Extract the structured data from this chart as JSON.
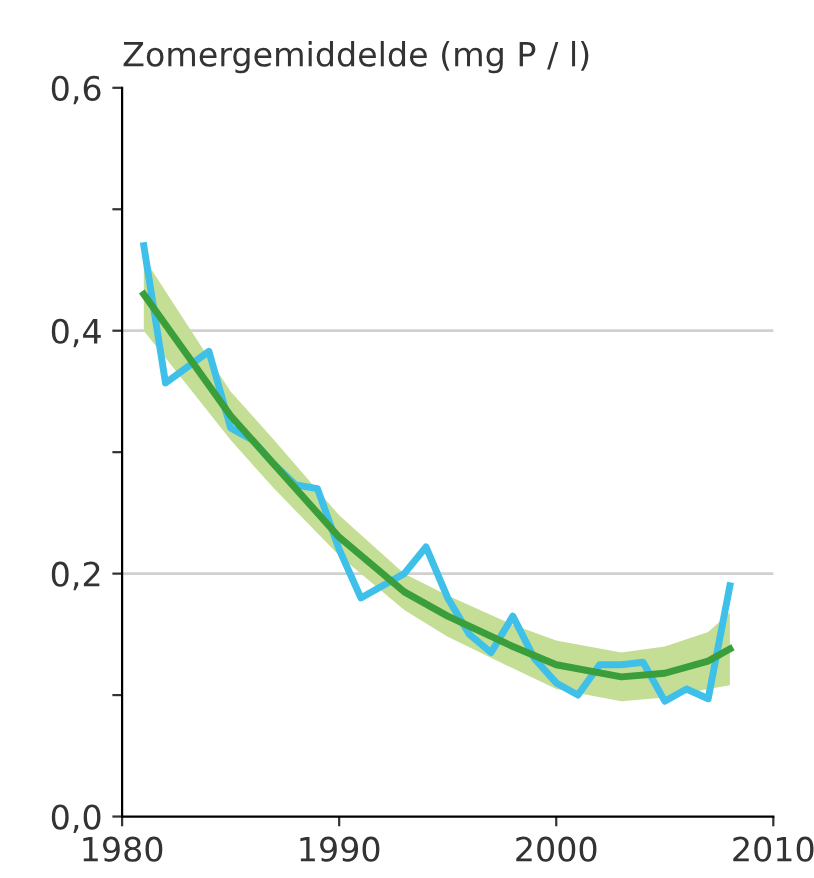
{
  "chart_data": {
    "type": "line",
    "ylabel": "Zomergemiddelde (mg P / l)",
    "xlim": [
      1980,
      2010
    ],
    "xticks": [
      1980,
      1990,
      2000,
      2010
    ],
    "ylim": [
      0,
      0.6
    ],
    "yticks": [
      {
        "value": 0,
        "label": "0,0"
      },
      {
        "value": 0.1,
        "label": null
      },
      {
        "value": 0.2,
        "label": "0,2"
      },
      {
        "value": 0.3,
        "label": null
      },
      {
        "value": 0.4,
        "label": "0,4"
      },
      {
        "value": 0.5,
        "label": null
      },
      {
        "value": 0.6,
        "label": "0,6"
      }
    ],
    "grid": "y",
    "marker": "none",
    "line_style": "solid",
    "series": [
      {
        "color": "#3a9e3a",
        "x": [
          1981,
          1983,
          1985,
          1987,
          1990,
          1993,
          1995,
          1998,
          2000,
          2003,
          2005,
          2007,
          2008
        ],
        "values": [
          0.43,
          0.38,
          0.33,
          0.29,
          0.23,
          0.185,
          0.165,
          0.14,
          0.125,
          0.115,
          0.118,
          0.128,
          0.138
        ],
        "lower": [
          0.4,
          0.355,
          0.31,
          0.27,
          0.215,
          0.17,
          0.148,
          0.122,
          0.105,
          0.095,
          0.098,
          0.105,
          0.108
        ],
        "upper": [
          0.46,
          0.405,
          0.35,
          0.31,
          0.248,
          0.2,
          0.182,
          0.158,
          0.145,
          0.135,
          0.14,
          0.152,
          0.168
        ]
      },
      {
        "color": "#3fc0e8",
        "x": [
          1981,
          1982,
          1983,
          1984,
          1985,
          1986,
          1987,
          1988,
          1989,
          1990,
          1991,
          1992,
          1993,
          1994,
          1995,
          1996,
          1997,
          1998,
          1999,
          2000,
          2001,
          2002,
          2003,
          2004,
          2005,
          2006,
          2007,
          2008
        ],
        "values": [
          0.47,
          0.357,
          0.37,
          0.383,
          0.32,
          0.31,
          0.29,
          0.273,
          0.27,
          0.22,
          0.18,
          0.19,
          0.2,
          0.222,
          0.18,
          0.15,
          0.135,
          0.165,
          0.13,
          0.11,
          0.1,
          0.125,
          0.125,
          0.127,
          0.095,
          0.105,
          0.097,
          0.19
        ]
      }
    ]
  }
}
